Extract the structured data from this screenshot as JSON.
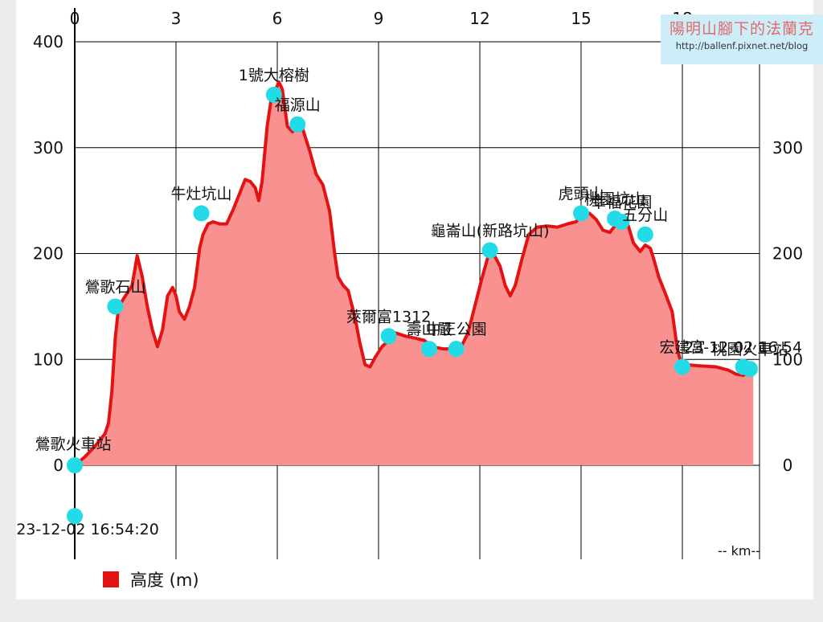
{
  "chart_data": {
    "type": "area",
    "x_axis": {
      "ticks": [
        0,
        3,
        6,
        9,
        12,
        15,
        18
      ],
      "range": [
        0,
        20.3
      ],
      "unit_label": "-- km--"
    },
    "y_axis": {
      "left_ticks": [
        0,
        100,
        200,
        300,
        400
      ],
      "right_ticks": [
        0,
        100,
        200,
        300,
        400
      ],
      "range": [
        -90,
        400
      ]
    },
    "grid": true,
    "series": [
      {
        "name": "高度 (m)",
        "color": "#e31313",
        "fill": "#f99191",
        "points": [
          [
            0,
            0
          ],
          [
            0.3,
            8
          ],
          [
            0.6,
            18
          ],
          [
            0.9,
            30
          ],
          [
            1.0,
            40
          ],
          [
            1.1,
            70
          ],
          [
            1.2,
            120
          ],
          [
            1.3,
            150
          ],
          [
            1.5,
            160
          ],
          [
            1.7,
            170
          ],
          [
            1.85,
            198
          ],
          [
            2.0,
            178
          ],
          [
            2.15,
            150
          ],
          [
            2.3,
            128
          ],
          [
            2.45,
            112
          ],
          [
            2.6,
            128
          ],
          [
            2.75,
            160
          ],
          [
            2.9,
            168
          ],
          [
            3.0,
            160
          ],
          [
            3.1,
            145
          ],
          [
            3.25,
            138
          ],
          [
            3.4,
            150
          ],
          [
            3.55,
            168
          ],
          [
            3.7,
            205
          ],
          [
            3.8,
            218
          ],
          [
            3.95,
            228
          ],
          [
            4.1,
            230
          ],
          [
            4.3,
            228
          ],
          [
            4.5,
            228
          ],
          [
            4.7,
            242
          ],
          [
            4.9,
            258
          ],
          [
            5.05,
            270
          ],
          [
            5.2,
            268
          ],
          [
            5.35,
            262
          ],
          [
            5.45,
            250
          ],
          [
            5.55,
            268
          ],
          [
            5.7,
            320
          ],
          [
            5.85,
            352
          ],
          [
            5.95,
            355
          ],
          [
            6.05,
            362
          ],
          [
            6.15,
            355
          ],
          [
            6.3,
            320
          ],
          [
            6.45,
            315
          ],
          [
            6.6,
            322
          ],
          [
            6.75,
            318
          ],
          [
            6.95,
            298
          ],
          [
            7.15,
            275
          ],
          [
            7.35,
            265
          ],
          [
            7.55,
            240
          ],
          [
            7.7,
            200
          ],
          [
            7.8,
            178
          ],
          [
            7.95,
            170
          ],
          [
            8.1,
            165
          ],
          [
            8.3,
            140
          ],
          [
            8.45,
            115
          ],
          [
            8.6,
            95
          ],
          [
            8.75,
            93
          ],
          [
            8.9,
            102
          ],
          [
            9.1,
            112
          ],
          [
            9.3,
            118
          ],
          [
            9.5,
            125
          ],
          [
            9.8,
            122
          ],
          [
            10.1,
            120
          ],
          [
            10.35,
            118
          ],
          [
            10.6,
            112
          ],
          [
            10.9,
            110
          ],
          [
            11.2,
            110
          ],
          [
            11.45,
            112
          ],
          [
            11.65,
            125
          ],
          [
            11.85,
            150
          ],
          [
            12.05,
            175
          ],
          [
            12.25,
            198
          ],
          [
            12.4,
            200
          ],
          [
            12.6,
            188
          ],
          [
            12.75,
            170
          ],
          [
            12.9,
            160
          ],
          [
            13.05,
            170
          ],
          [
            13.25,
            195
          ],
          [
            13.45,
            218
          ],
          [
            13.7,
            225
          ],
          [
            14.0,
            226
          ],
          [
            14.3,
            225
          ],
          [
            14.6,
            228
          ],
          [
            14.85,
            230
          ],
          [
            15.0,
            236
          ],
          [
            15.25,
            238
          ],
          [
            15.45,
            232
          ],
          [
            15.65,
            222
          ],
          [
            15.85,
            220
          ],
          [
            16.05,
            228
          ],
          [
            16.25,
            234
          ],
          [
            16.4,
            226
          ],
          [
            16.55,
            210
          ],
          [
            16.75,
            202
          ],
          [
            16.9,
            208
          ],
          [
            17.05,
            205
          ],
          [
            17.15,
            195
          ],
          [
            17.3,
            178
          ],
          [
            17.5,
            162
          ],
          [
            17.7,
            145
          ],
          [
            17.85,
            110
          ],
          [
            17.95,
            98
          ],
          [
            18.1,
            95
          ],
          [
            18.5,
            94
          ],
          [
            19.0,
            93
          ],
          [
            19.35,
            90
          ],
          [
            19.6,
            86
          ],
          [
            19.8,
            85
          ],
          [
            20.0,
            88
          ],
          [
            20.1,
            88
          ]
        ]
      }
    ],
    "waypoints": [
      {
        "label": "鶯歌火車站",
        "x": 0.0,
        "y": 0,
        "anchor": "left"
      },
      {
        "label": "23-12-02 16:54:20",
        "x": 0.0,
        "y": -48,
        "anchor": "below"
      },
      {
        "label": "鶯歌石山",
        "x": 1.2,
        "y": 150,
        "anchor": "above"
      },
      {
        "label": "牛灶坑山",
        "x": 3.75,
        "y": 238,
        "anchor": "above"
      },
      {
        "label": "1號大榕樹",
        "x": 5.9,
        "y": 350,
        "anchor": "above"
      },
      {
        "label": "福源山",
        "x": 6.6,
        "y": 322,
        "anchor": "above"
      },
      {
        "label": "萊爾富1312",
        "x": 9.3,
        "y": 122,
        "anchor": "above"
      },
      {
        "label": "壽山嚴",
        "x": 10.5,
        "y": 110,
        "anchor": "above"
      },
      {
        "label": "中正公園",
        "x": 11.3,
        "y": 110,
        "anchor": "above"
      },
      {
        "label": "龜崙山(新路坑山)",
        "x": 12.3,
        "y": 203,
        "anchor": "above"
      },
      {
        "label": "虎頭山",
        "x": 15.0,
        "y": 238,
        "anchor": "above"
      },
      {
        "label": "桃園坑山",
        "x": 16.0,
        "y": 233,
        "anchor": "above"
      },
      {
        "label": "幸福花園",
        "x": 16.2,
        "y": 230,
        "anchor": "above"
      },
      {
        "label": "五分山",
        "x": 16.9,
        "y": 218,
        "anchor": "above"
      },
      {
        "label": "宏建宮",
        "x": 18.0,
        "y": 93,
        "anchor": "above"
      },
      {
        "label": "23-12-02 16:54",
        "x": 19.8,
        "y": 93,
        "anchor": "above"
      },
      {
        "label": "桃園火車站",
        "x": 20.0,
        "y": 91,
        "anchor": "above"
      }
    ],
    "xlabel": "-- km--",
    "ylabel": "",
    "title": ""
  },
  "legend": {
    "label": "高度 (m)"
  },
  "watermark": {
    "title": "陽明山腳下的法蘭克",
    "url": "http://ballenf.pixnet.net/blog"
  }
}
